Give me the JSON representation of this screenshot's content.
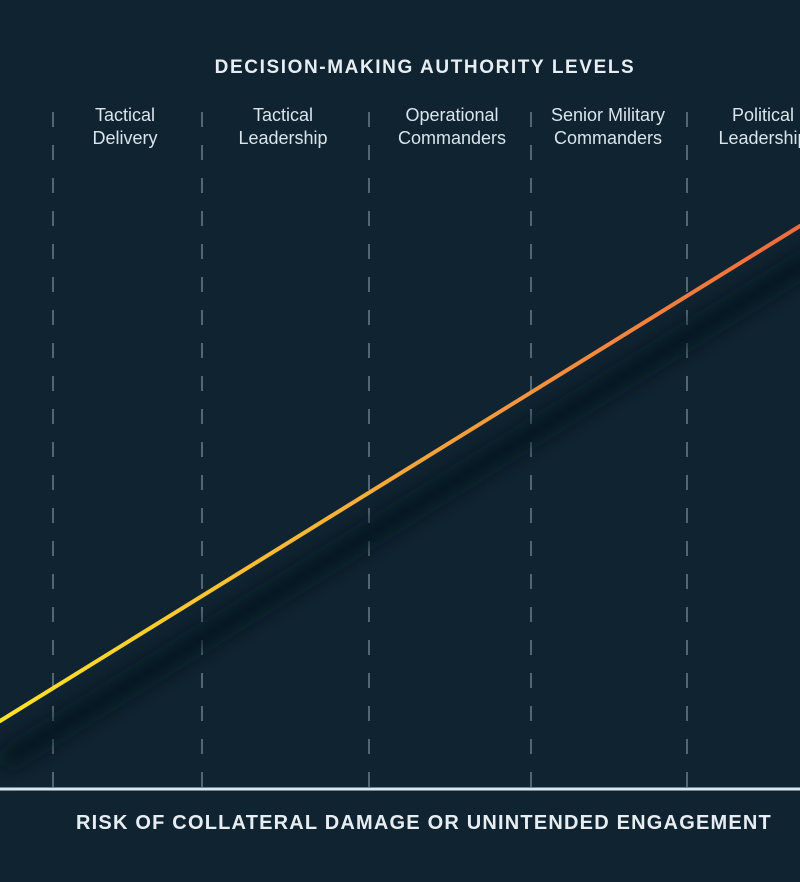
{
  "diagram": {
    "title": "DECISION-MAKING AUTHORITY LEVELS",
    "axis_label": "RISK OF COLLATERAL DAMAGE OR UNINTENDED ENGAGEMENT",
    "levels": [
      {
        "line1": "Tactical",
        "line2": "Delivery"
      },
      {
        "line1": "Tactical",
        "line2": "Leadership"
      },
      {
        "line1": "Operational",
        "line2": "Commanders"
      },
      {
        "line1": "Senior Military",
        "line2": "Commanders"
      },
      {
        "line1": "Political",
        "line2": "Leadership"
      }
    ],
    "colors": {
      "background": "#0f2330",
      "text": "#e7eef3",
      "divider": "#6f8391",
      "baseline": "#dbe7ee",
      "gradient_start": "#ffe326",
      "gradient_end": "#f06a3d"
    }
  }
}
